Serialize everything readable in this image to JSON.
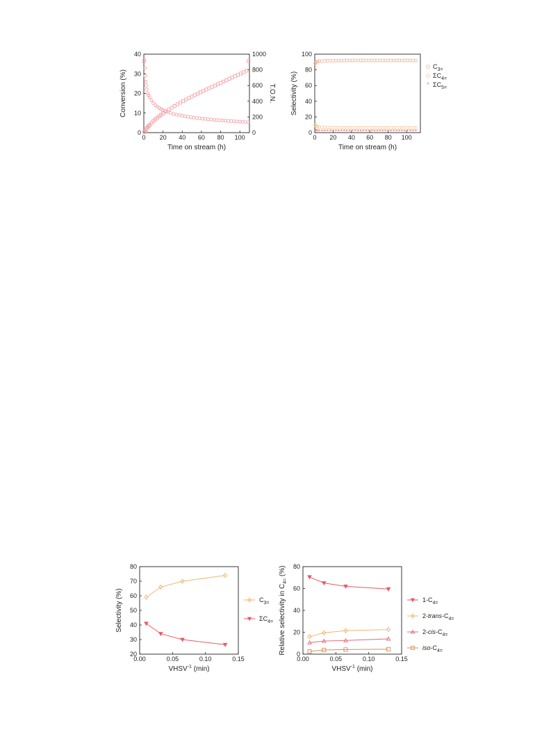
{
  "chart_data": [
    {
      "id": "fig-top-left",
      "type": "scatter",
      "xlabel": "Time on stream (h)",
      "ylabel": "Conversion (%)",
      "y2label": "T.O.N.",
      "xlim": [
        0,
        110
      ],
      "ylim": [
        0,
        40
      ],
      "y2lim": [
        0,
        1000
      ],
      "xticks": [
        "0",
        "20",
        "40",
        "60",
        "80",
        "100"
      ],
      "yticks": [
        "0",
        "10",
        "20",
        "30",
        "40"
      ],
      "y2ticks": [
        "0",
        "200",
        "400",
        "600",
        "800",
        "1000"
      ],
      "series": [
        {
          "axis": "left",
          "marker": "circle",
          "color": "#f2a3a6",
          "x": [
            0.3,
            0.6,
            1,
            1.5,
            2,
            2.5,
            3,
            4,
            5,
            6,
            8,
            10,
            12,
            14,
            16,
            18,
            20,
            22,
            25,
            28,
            31,
            34,
            37,
            40,
            43,
            46,
            49,
            52,
            55,
            58,
            61,
            64,
            67,
            70,
            73,
            76,
            79,
            82,
            85,
            88,
            91,
            94,
            97,
            100,
            103,
            106,
            109
          ],
          "values": [
            36,
            37,
            33,
            29,
            26,
            24,
            22,
            20,
            19,
            18,
            16.5,
            15,
            14,
            13.2,
            12.5,
            12,
            11.5,
            11,
            10.5,
            10,
            9.5,
            9.2,
            8.9,
            8.6,
            8.3,
            8.1,
            7.9,
            7.7,
            7.5,
            7.3,
            7.1,
            7.0,
            6.8,
            6.7,
            6.5,
            6.4,
            6.3,
            6.2,
            6.1,
            6.0,
            5.9,
            5.8,
            5.7,
            5.6,
            5.5,
            5.4,
            5.3
          ]
        },
        {
          "axis": "right",
          "marker": "square",
          "color": "#f2a3a6",
          "x": [
            0.5,
            1,
            2,
            3,
            4,
            5,
            6,
            8,
            10,
            12,
            14,
            16,
            18,
            20,
            23,
            26,
            29,
            32,
            35,
            38,
            41,
            44,
            47,
            50,
            53,
            56,
            59,
            62,
            65,
            68,
            71,
            74,
            77,
            80,
            83,
            86,
            89,
            92,
            95,
            98,
            101,
            104,
            107,
            109
          ],
          "values": [
            5,
            15,
            35,
            55,
            70,
            85,
            100,
            125,
            150,
            170,
            190,
            210,
            228,
            245,
            270,
            295,
            318,
            340,
            362,
            383,
            403,
            422,
            441,
            460,
            478,
            496,
            514,
            532,
            549,
            566,
            583,
            600,
            617,
            634,
            651,
            668,
            685,
            702,
            719,
            736,
            753,
            770,
            790,
            910
          ]
        }
      ]
    },
    {
      "id": "fig-top-right",
      "type": "scatter",
      "xlabel": "Time on stream (h)",
      "ylabel": "Selectivity (%)",
      "xlim": [
        0,
        115
      ],
      "ylim": [
        0,
        100
      ],
      "xticks": [
        "0",
        "20",
        "40",
        "60",
        "80",
        "100"
      ],
      "yticks": [
        "0",
        "20",
        "40",
        "60",
        "80",
        "100"
      ],
      "series": [
        {
          "name_html": "C<tspan dy='3' font-size='7'>3=</tspan>",
          "marker": "circle",
          "color": "#f2b8a0",
          "x": [
            0.5,
            1,
            2,
            3,
            5,
            8,
            11,
            14,
            17,
            20,
            23,
            26,
            29,
            32,
            35,
            38,
            41,
            44,
            47,
            50,
            53,
            56,
            59,
            62,
            65,
            68,
            71,
            74,
            77,
            80,
            83,
            86,
            89,
            92,
            95,
            98,
            101,
            104,
            107,
            110
          ],
          "values": [
            88,
            89,
            90,
            90.5,
            91,
            91.2,
            91.4,
            91.5,
            91.6,
            91.7,
            91.8,
            91.8,
            91.9,
            91.9,
            92,
            92,
            92,
            92,
            92,
            92,
            92,
            92,
            92,
            92,
            92,
            92,
            92,
            92,
            92,
            92,
            92,
            92,
            92,
            92,
            92,
            92,
            92,
            92,
            92,
            92
          ]
        },
        {
          "name_html": "ΣC<tspan dy='3' font-size='7'>4=</tspan>",
          "marker": "circle",
          "color": "#f5cfa0",
          "x": [
            0.5,
            1,
            2,
            3,
            5,
            8,
            11,
            14,
            17,
            20,
            23,
            26,
            29,
            32,
            35,
            38,
            41,
            44,
            47,
            50,
            53,
            56,
            59,
            62,
            65,
            68,
            71,
            74,
            77,
            80,
            83,
            86,
            89,
            92,
            95,
            98,
            101,
            104,
            107,
            110
          ],
          "values": [
            10,
            9,
            8,
            7.5,
            7,
            6.8,
            6.6,
            6.5,
            6.4,
            6.3,
            6.3,
            6.2,
            6.2,
            6.1,
            6.1,
            6.0,
            6.0,
            6.0,
            6.0,
            6.0,
            6.0,
            6.0,
            6.0,
            6.0,
            6.0,
            6.0,
            6.0,
            6.0,
            6.0,
            6.0,
            6.0,
            6.0,
            6.0,
            6.0,
            6.0,
            6.0,
            6.0,
            6.0,
            6.0,
            6.0
          ]
        },
        {
          "name_html": "ΣC<tspan dy='3' font-size='7'>5=</tspan>",
          "marker": "star",
          "color": "#ea7a80",
          "x": [
            0.5,
            1,
            2,
            3,
            5,
            8,
            11,
            14,
            17,
            20,
            23,
            26,
            29,
            32,
            35,
            38,
            41,
            44,
            47,
            50,
            53,
            56,
            59,
            62,
            65,
            68,
            71,
            74,
            77,
            80,
            83,
            86,
            89,
            92,
            95,
            98,
            101,
            104,
            107,
            110
          ],
          "values": [
            2,
            1.8,
            1.6,
            1.5,
            1.4,
            1.3,
            1.3,
            1.2,
            1.2,
            1.2,
            1.2,
            1.2,
            1.2,
            1.2,
            1.2,
            1.2,
            1.2,
            1.2,
            1.2,
            1.2,
            1.2,
            1.2,
            1.2,
            1.2,
            1.2,
            1.2,
            1.2,
            1.2,
            1.2,
            1.2,
            1.2,
            1.2,
            1.2,
            1.2,
            1.2,
            1.2,
            1.2,
            1.2,
            1.2,
            1.2
          ]
        }
      ]
    },
    {
      "id": "fig-bottom-left",
      "type": "line",
      "xlabel_html": "VHSV<tspan dy='-4' font-size='7'>-1</tspan><tspan dy='4'> (min)</tspan>",
      "ylabel": "Selectivity (%)",
      "xlim": [
        0,
        0.15
      ],
      "ylim": [
        20,
        80
      ],
      "xticks": [
        "0.00",
        "0.05",
        "0.10",
        "0.15"
      ],
      "yticks": [
        "20",
        "30",
        "40",
        "50",
        "60",
        "70",
        "80"
      ],
      "x": [
        0.01,
        0.032,
        0.065,
        0.13
      ],
      "series": [
        {
          "name_html": "C<tspan dy='3' font-size='7'>3=</tspan>",
          "marker": "diamond",
          "color": "#f5b36b",
          "values": [
            59,
            66,
            70,
            74
          ]
        },
        {
          "name_html": "ΣC<tspan dy='3' font-size='7'>4=</tspan>",
          "marker": "triangle-down",
          "color": "#e85a66",
          "values": [
            41,
            34,
            30,
            26.5
          ]
        }
      ]
    },
    {
      "id": "fig-bottom-right",
      "type": "line",
      "xlabel_html": "VHSV<tspan dy='-4' font-size='7'>-1</tspan><tspan dy='4'> (min)</tspan>",
      "ylabel_html": "Relative selectivity in C<tspan dy='3' font-size='7'>4=</tspan><tspan dy='-3'> (%)</tspan>",
      "xlim": [
        0,
        0.15
      ],
      "ylim": [
        0,
        80
      ],
      "xticks": [
        "0.00",
        "0.05",
        "0.10",
        "0.15"
      ],
      "yticks": [
        "0",
        "20",
        "40",
        "60",
        "80"
      ],
      "x": [
        0.01,
        0.032,
        0.065,
        0.13
      ],
      "series": [
        {
          "name_html": "1-C<tspan dy='3' font-size='7'>4=</tspan>",
          "marker": "triangle-down",
          "color": "#e85a66",
          "values": [
            70.5,
            65,
            62,
            59.5
          ]
        },
        {
          "name_html": "2-<tspan font-style='italic'>trans</tspan>-C<tspan dy='3' font-size='7'>4=</tspan>",
          "marker": "diamond",
          "color": "#f5b36b",
          "values": [
            16,
            19.5,
            21.5,
            22.5
          ]
        },
        {
          "name_html": "2-<tspan font-style='italic'>cis</tspan>-C<tspan dy='3' font-size='7'>4=</tspan>",
          "marker": "triangle-up",
          "color": "#e06a78",
          "values": [
            10.5,
            12,
            12.5,
            14
          ]
        },
        {
          "name_html": "<tspan font-style='italic'>iso</tspan>-C<tspan dy='3' font-size='7'>4=</tspan>",
          "marker": "square",
          "color": "#d69050",
          "values": [
            2.5,
            3.8,
            4.2,
            4.5
          ]
        }
      ]
    }
  ]
}
